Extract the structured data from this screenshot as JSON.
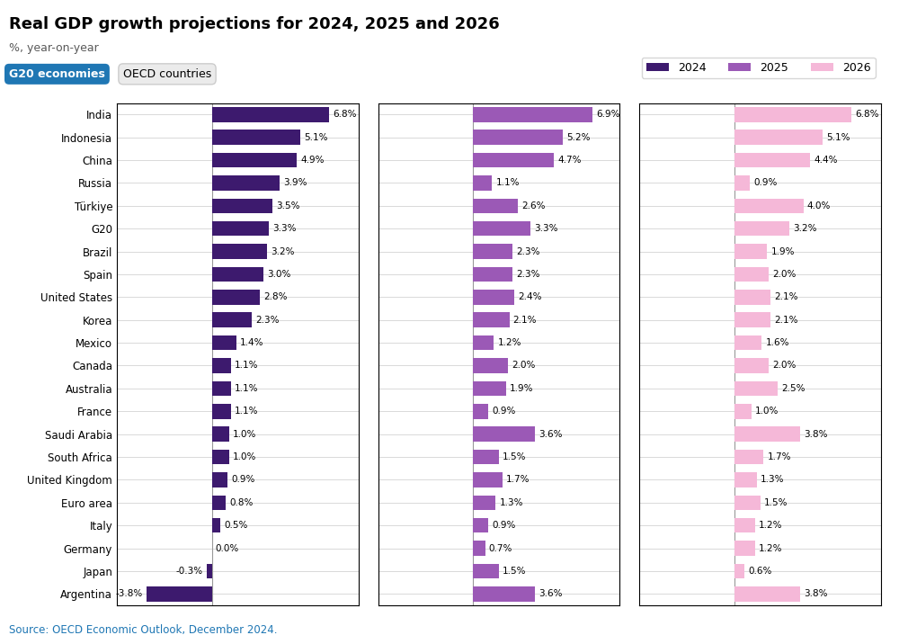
{
  "chart_data": {
    "type": "bar",
    "orientation": "horizontal",
    "title": "Real GDP growth projections for 2024, 2025 and 2026",
    "subtitle": "%, year-on-year",
    "annotations": [
      "G20 economies",
      "OECD countries",
      "Source: OECD Economic Outlook, December 2024."
    ],
    "categories": [
      "India",
      "Indonesia",
      "China",
      "Russia",
      "Türkiye",
      "G20",
      "Brazil",
      "Spain",
      "United States",
      "Korea",
      "Mexico",
      "Canada",
      "Australia",
      "France",
      "Saudi Arabia",
      "South Africa",
      "United Kingdom",
      "Euro area",
      "Italy",
      "Germany",
      "Japan",
      "Argentina"
    ],
    "series": [
      {
        "name": "2024",
        "color": "#3d1a6e",
        "values": [
          6.8,
          5.1,
          4.9,
          3.9,
          3.5,
          3.3,
          3.2,
          3.0,
          2.8,
          2.3,
          1.4,
          1.1,
          1.1,
          1.1,
          1.0,
          1.0,
          0.9,
          0.8,
          0.5,
          0.0,
          -0.3,
          -3.8
        ],
        "value_labels": [
          "6.8%",
          "5.1%",
          "4.9%",
          "3.9%",
          "3.5%",
          "3.3%",
          "3.2%",
          "3.0%",
          "2.8%",
          "2.3%",
          "1.4%",
          "1.1%",
          "1.1%",
          "1.1%",
          "1.0%",
          "1.0%",
          "0.9%",
          "0.8%",
          "0.5%",
          "0.0%",
          "-0.3%",
          "-3.8%"
        ]
      },
      {
        "name": "2025",
        "color": "#9b59b6",
        "values": [
          6.9,
          5.2,
          4.7,
          1.1,
          2.6,
          3.3,
          2.3,
          2.3,
          2.4,
          2.1,
          1.2,
          2.0,
          1.9,
          0.9,
          3.6,
          1.5,
          1.7,
          1.3,
          0.9,
          0.7,
          1.5,
          3.6
        ],
        "value_labels": [
          "6.9%",
          "5.2%",
          "4.7%",
          "1.1%",
          "2.6%",
          "3.3%",
          "2.3%",
          "2.3%",
          "2.4%",
          "2.1%",
          "1.2%",
          "2.0%",
          "1.9%",
          "0.9%",
          "3.6%",
          "1.5%",
          "1.7%",
          "1.3%",
          "0.9%",
          "0.7%",
          "1.5%",
          "3.6%"
        ]
      },
      {
        "name": "2026",
        "color": "#f5b8d8",
        "values": [
          6.8,
          5.1,
          4.4,
          0.9,
          4.0,
          3.2,
          1.9,
          2.0,
          2.1,
          2.1,
          1.6,
          2.0,
          2.5,
          1.0,
          3.8,
          1.7,
          1.3,
          1.5,
          1.2,
          1.2,
          0.6,
          3.8
        ],
        "value_labels": [
          "6.8%",
          "5.1%",
          "4.4%",
          "0.9%",
          "4.0%",
          "3.2%",
          "1.9%",
          "2.0%",
          "2.1%",
          "2.1%",
          "1.6%",
          "2.0%",
          "2.5%",
          "1.0%",
          "3.8%",
          "1.7%",
          "1.3%",
          "1.5%",
          "1.2%",
          "1.2%",
          "0.6%",
          "3.8%"
        ]
      }
    ],
    "xlim": [
      -5.5,
      8.5
    ],
    "xticks": [],
    "tick_labels": "y",
    "data_labels": true,
    "grid": true,
    "legend": "upper right"
  }
}
